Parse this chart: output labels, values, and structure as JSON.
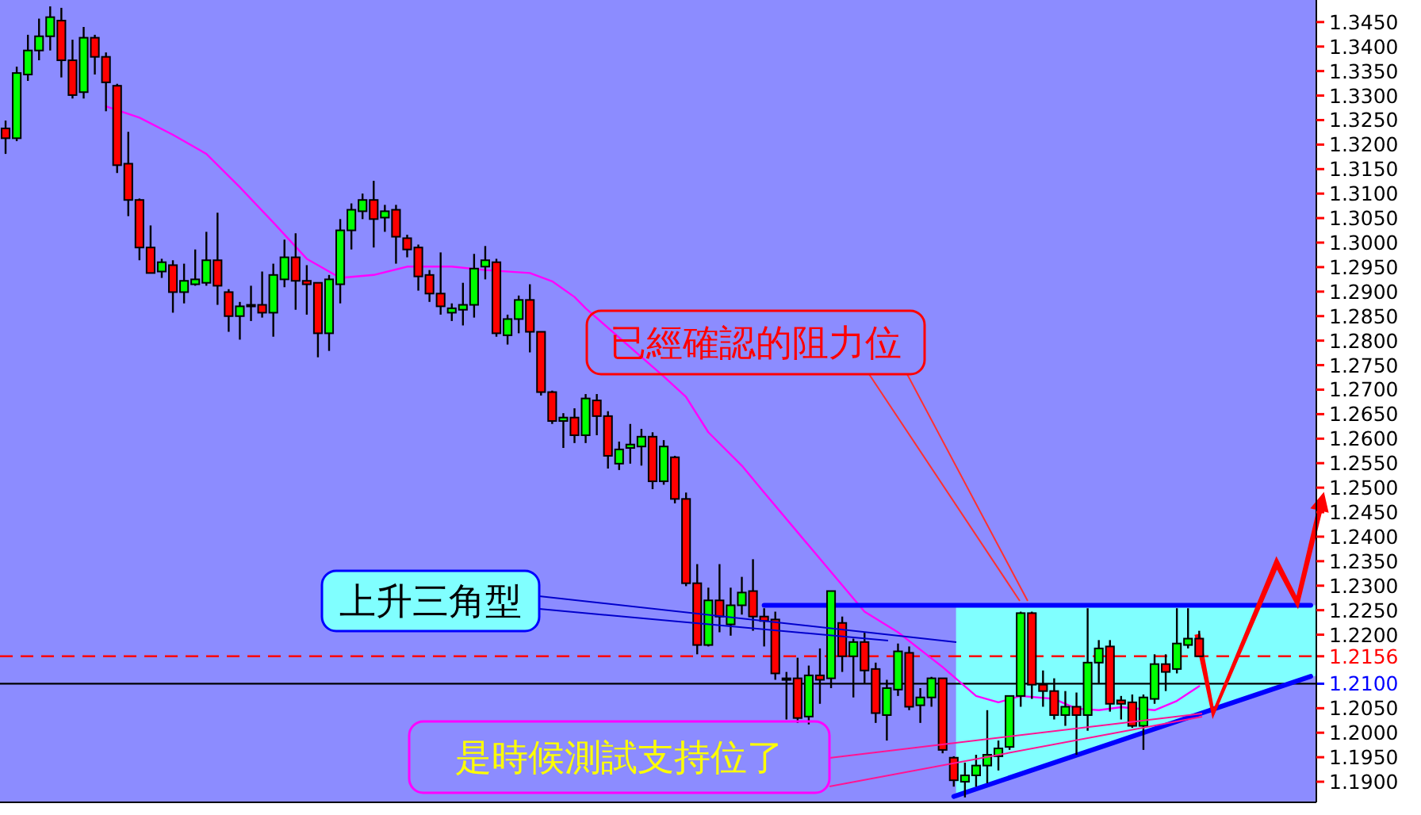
{
  "chart_data": {
    "type": "candlestick",
    "categories": [
      null,
      null,
      null,
      null,
      null,
      null,
      null,
      null,
      null,
      null,
      null,
      null,
      null,
      null,
      null,
      null,
      null,
      null,
      null,
      null,
      null,
      null,
      null,
      null,
      null,
      null,
      null,
      null,
      null,
      null,
      null,
      null,
      null,
      null,
      null,
      null,
      null,
      null,
      null,
      null,
      null,
      null,
      null,
      null,
      null,
      null,
      null,
      null,
      null,
      null,
      null,
      null,
      null,
      null,
      null,
      null,
      null,
      null,
      null,
      null,
      null,
      null,
      null,
      null,
      null,
      null,
      null,
      null,
      null,
      null,
      null,
      null,
      null,
      null,
      null,
      null,
      null,
      null,
      null,
      null,
      null,
      null,
      null,
      null,
      null,
      null,
      null,
      null,
      null,
      null,
      null,
      null,
      null,
      null,
      null,
      null,
      null,
      null,
      null,
      null,
      null,
      null,
      null,
      null,
      null,
      null,
      null,
      null,
      null,
      null,
      null,
      null,
      null,
      null,
      null,
      null,
      null,
      null
    ],
    "ohlc": [
      [
        1.3233,
        1.3249,
        1.3181,
        1.3213
      ],
      [
        1.3213,
        1.3359,
        1.3207,
        1.3346
      ],
      [
        1.3343,
        1.3424,
        1.333,
        1.3392
      ],
      [
        1.3392,
        1.3457,
        1.3372,
        1.3421
      ],
      [
        1.3421,
        1.3482,
        1.3392,
        1.346
      ],
      [
        1.3453,
        1.3479,
        1.3337,
        1.3372
      ],
      [
        1.3372,
        1.3414,
        1.3294,
        1.3301
      ],
      [
        1.3307,
        1.344,
        1.3294,
        1.3418
      ],
      [
        1.3418,
        1.3424,
        1.3343,
        1.3379
      ],
      [
        1.3379,
        1.3388,
        1.3268,
        1.3327
      ],
      [
        1.332,
        1.3324,
        1.3142,
        1.3158
      ],
      [
        1.3161,
        1.3226,
        1.3054,
        1.3087
      ],
      [
        1.3087,
        1.309,
        1.2964,
        1.299
      ],
      [
        1.299,
        1.3035,
        1.2938,
        1.2938
      ],
      [
        1.2941,
        1.2967,
        1.2928,
        1.296
      ],
      [
        1.2954,
        1.2964,
        1.2857,
        1.2899
      ],
      [
        1.2899,
        1.2957,
        1.2876,
        1.2922
      ],
      [
        1.2915,
        1.2986,
        1.2912,
        1.2925
      ],
      [
        1.2918,
        1.3022,
        1.2912,
        1.2964
      ],
      [
        1.2964,
        1.3061,
        1.2873,
        1.2912
      ],
      [
        1.2899,
        1.2905,
        1.2818,
        1.285
      ],
      [
        1.285,
        1.2879,
        1.2802,
        1.287
      ],
      [
        1.287,
        1.2912,
        1.284,
        1.2873
      ],
      [
        1.2873,
        1.2941,
        1.2847,
        1.2857
      ],
      [
        1.2857,
        1.2957,
        1.2808,
        1.2934
      ],
      [
        1.2925,
        1.3006,
        1.2909,
        1.297
      ],
      [
        1.297,
        1.3019,
        1.2863,
        1.2922
      ],
      [
        1.2922,
        1.2954,
        1.2853,
        1.2915
      ],
      [
        1.2918,
        1.2918,
        1.2766,
        1.2815
      ],
      [
        1.2815,
        1.2934,
        1.2779,
        1.2925
      ],
      [
        1.2915,
        1.3048,
        1.2876,
        1.3025
      ],
      [
        1.3025,
        1.308,
        1.2986,
        1.3067
      ],
      [
        1.3064,
        1.31,
        1.3048,
        1.3087
      ],
      [
        1.3087,
        1.3126,
        1.299,
        1.3048
      ],
      [
        1.3051,
        1.3077,
        1.3022,
        1.3064
      ],
      [
        1.3067,
        1.3077,
        1.2957,
        1.3012
      ],
      [
        1.3009,
        1.3016,
        1.297,
        1.2986
      ],
      [
        1.299,
        1.2996,
        1.2902,
        1.2931
      ],
      [
        1.2934,
        1.2944,
        1.2879,
        1.2896
      ],
      [
        1.2896,
        1.298,
        1.2853,
        1.287
      ],
      [
        1.2857,
        1.2876,
        1.284,
        1.2866
      ],
      [
        1.2863,
        1.2918,
        1.2831,
        1.2873
      ],
      [
        1.2873,
        1.2977,
        1.2847,
        1.2947
      ],
      [
        1.2951,
        1.2993,
        1.2925,
        1.2964
      ],
      [
        1.296,
        1.2967,
        1.2808,
        1.2815
      ],
      [
        1.2811,
        1.2853,
        1.2792,
        1.2844
      ],
      [
        1.2844,
        1.2892,
        1.2815,
        1.2883
      ],
      [
        1.2883,
        1.2915,
        1.2776,
        1.2818
      ],
      [
        1.2818,
        1.2818,
        1.2688,
        1.2695
      ],
      [
        1.2695,
        1.2698,
        1.263,
        1.2636
      ],
      [
        1.2636,
        1.2652,
        1.2581,
        1.2643
      ],
      [
        1.2643,
        1.2662,
        1.2591,
        1.2607
      ],
      [
        1.2607,
        1.2691,
        1.2591,
        1.2682
      ],
      [
        1.2678,
        1.2691,
        1.2607,
        1.2646
      ],
      [
        1.2646,
        1.2656,
        1.2539,
        1.2565
      ],
      [
        1.2549,
        1.2594,
        1.2536,
        1.2578
      ],
      [
        1.2581,
        1.263,
        1.2549,
        1.2588
      ],
      [
        1.2584,
        1.262,
        1.2545,
        1.2604
      ],
      [
        1.2604,
        1.2613,
        1.2497,
        1.2513
      ],
      [
        1.2513,
        1.2597,
        1.2506,
        1.2584
      ],
      [
        1.2562,
        1.2565,
        1.2468,
        1.2477
      ],
      [
        1.2477,
        1.249,
        1.2299,
        1.2305
      ],
      [
        1.2305,
        1.2344,
        1.216,
        1.2179
      ],
      [
        1.2179,
        1.2296,
        1.2176,
        1.227
      ],
      [
        1.227,
        1.2344,
        1.2205,
        1.2237
      ],
      [
        1.2221,
        1.2296,
        1.2198,
        1.226
      ],
      [
        1.226,
        1.2318,
        1.2241,
        1.2286
      ],
      [
        1.2289,
        1.2354,
        1.2208,
        1.2237
      ],
      [
        1.2237,
        1.2254,
        1.2176,
        1.2228
      ],
      [
        1.2231,
        1.2247,
        1.2108,
        1.2121
      ],
      [
        1.2111,
        1.2124,
        1.2027,
        1.2108
      ],
      [
        1.2111,
        1.2153,
        1.202,
        1.203
      ],
      [
        1.2033,
        1.2137,
        1.2017,
        1.2117
      ],
      [
        1.2117,
        1.2172,
        1.2059,
        1.2108
      ],
      [
        1.2111,
        1.2289,
        1.2091,
        1.2289
      ],
      [
        1.2224,
        1.2237,
        1.2124,
        1.2156
      ],
      [
        1.2156,
        1.2192,
        1.2072,
        1.2185
      ],
      [
        1.2185,
        1.2205,
        1.2101,
        1.2127
      ],
      [
        1.213,
        1.2143,
        1.202,
        1.204
      ],
      [
        1.2036,
        1.2108,
        1.1984,
        1.2091
      ],
      [
        1.2088,
        1.2182,
        1.2075,
        1.2166
      ],
      [
        1.2163,
        1.2176,
        1.2046,
        1.2053
      ],
      [
        1.2056,
        1.2091,
        1.202,
        1.2072
      ],
      [
        1.2072,
        1.2114,
        1.2053,
        1.2111
      ],
      [
        1.2111,
        1.2111,
        1.1958,
        1.1965
      ],
      [
        1.1949,
        1.1952,
        1.189,
        1.1903
      ],
      [
        1.19,
        1.1939,
        1.1868,
        1.1913
      ],
      [
        1.1913,
        1.1955,
        1.189,
        1.1933
      ],
      [
        1.1933,
        1.2046,
        1.1897,
        1.1955
      ],
      [
        1.1952,
        1.1984,
        1.1923,
        1.1968
      ],
      [
        1.1971,
        1.2075,
        1.1965,
        1.2075
      ],
      [
        1.2075,
        1.2247,
        1.2053,
        1.2244
      ],
      [
        1.2244,
        1.2247,
        1.2069,
        1.2098
      ],
      [
        1.2098,
        1.2127,
        1.2053,
        1.2085
      ],
      [
        1.2085,
        1.2111,
        1.2027,
        1.2036
      ],
      [
        1.2036,
        1.2085,
        1.2014,
        1.2053
      ],
      [
        1.2053,
        1.2082,
        1.1955,
        1.2036
      ],
      [
        1.2036,
        1.2254,
        1.2004,
        1.2143
      ],
      [
        1.2143,
        1.2189,
        1.2101,
        1.2172
      ],
      [
        1.2176,
        1.2189,
        1.2043,
        1.2059
      ],
      [
        1.2066,
        1.2075,
        1.2027,
        1.2059
      ],
      [
        1.2062,
        1.2078,
        1.201,
        1.2014
      ],
      [
        1.2014,
        1.2078,
        1.1965,
        1.2072
      ],
      [
        1.2069,
        1.216,
        1.2059,
        1.214
      ],
      [
        1.214,
        1.216,
        1.2085,
        1.2124
      ],
      [
        1.213,
        1.2254,
        1.2121,
        1.2182
      ],
      [
        1.2179,
        1.2254,
        1.2172,
        1.2192
      ],
      [
        1.2192,
        1.2208,
        1.2156,
        1.2156
      ],
      null,
      null,
      null,
      null,
      null,
      null,
      null,
      null,
      null,
      null
    ],
    "colors": [
      "#ff0000",
      "#00ff00",
      "#00ff00",
      "#00ff00",
      "#00ff00",
      "#ff0000",
      "#ff0000",
      "#00ff00",
      "#ff0000",
      "#ff0000",
      "#ff0000",
      "#ff0000",
      "#ff0000",
      "#ff0000",
      "#00ff00",
      "#ff0000",
      "#00ff00",
      "#00ff00",
      "#00ff00",
      "#ff0000",
      "#ff0000",
      "#00ff00",
      "#00ff00",
      "#ff0000",
      "#00ff00",
      "#00ff00",
      "#ff0000",
      "#ff0000",
      "#ff0000",
      "#00ff00",
      "#00ff00",
      "#00ff00",
      "#00ff00",
      "#ff0000",
      "#00ff00",
      "#ff0000",
      "#ff0000",
      "#ff0000",
      "#ff0000",
      "#ff0000",
      "#00ff00",
      "#00ff00",
      "#00ff00",
      "#00ff00",
      "#ff0000",
      "#00ff00",
      "#00ff00",
      "#ff0000",
      "#ff0000",
      "#ff0000",
      "#00ff00",
      "#ff0000",
      "#00ff00",
      "#ff0000",
      "#ff0000",
      "#00ff00",
      "#00ff00",
      "#00ff00",
      "#ff0000",
      "#00ff00",
      "#ff0000",
      "#ff0000",
      "#ff0000",
      "#00ff00",
      "#ff0000",
      "#00ff00",
      "#00ff00",
      "#ff0000",
      "#ff0000",
      "#ff0000",
      "#ff0000",
      "#ff0000",
      "#00ff00",
      "#ff0000",
      "#00ff00",
      "#ff0000",
      "#00ff00",
      "#ff0000",
      "#ff0000",
      "#00ff00",
      "#00ff00",
      "#ff0000",
      "#00ff00",
      "#00ff00",
      "#ff0000",
      "#ff0000",
      "#00ff00",
      "#00ff00",
      "#00ff00",
      "#00ff00",
      "#00ff00",
      "#00ff00",
      "#ff0000",
      "#ff0000",
      "#ff0000",
      "#00ff00",
      "#ff0000",
      "#00ff00",
      "#00ff00",
      "#ff0000",
      "#ff0000",
      "#ff0000",
      "#00ff00",
      "#00ff00",
      "#ff0000",
      "#00ff00",
      "#00ff00",
      "#ff0000",
      null,
      null,
      null,
      null,
      null,
      null,
      null,
      null,
      null,
      null
    ],
    "series": [
      {
        "type": "line",
        "color": "#ff00ff",
        "values": [
          null,
          null,
          null,
          null,
          null,
          null,
          null,
          null,
          null,
          1.3278,
          null,
          null,
          1.3255,
          null,
          null,
          1.322,
          null,
          null,
          1.3181,
          null,
          null,
          1.3113,
          null,
          null,
          1.3041,
          null,
          null,
          1.2967,
          null,
          null,
          1.2928,
          null,
          null,
          1.2934,
          null,
          null,
          1.2951,
          null,
          null,
          null,
          1.2951,
          null,
          null,
          1.2944,
          null,
          null,
          null,
          1.2938,
          null,
          1.2921,
          null,
          1.2889,
          1.2866,
          null,
          null,
          null,
          null,
          null,
          null,
          1.2727,
          null,
          1.2685,
          null,
          1.2613,
          null,
          null,
          1.2545,
          null,
          1.249,
          null,
          null,
          1.2409,
          null,
          null,
          1.2328,
          null,
          null,
          1.2247,
          null,
          null,
          1.2205,
          null,
          null,
          null,
          1.2134,
          null,
          null,
          1.2075,
          null,
          1.2062,
          null,
          1.2075,
          null,
          null,
          1.2069,
          null,
          1.2049,
          null,
          1.2046,
          null,
          1.2052,
          null,
          null,
          1.2046,
          null,
          1.2065,
          null,
          1.2095,
          null,
          null,
          null,
          null,
          null,
          null,
          null,
          null,
          null,
          null
        ]
      },
      {
        "type": "line",
        "color": "#0000ff",
        "values": [
          null,
          null,
          null,
          null,
          null,
          null,
          null,
          null,
          null,
          null,
          null,
          null,
          null,
          null,
          null,
          null,
          null,
          null,
          null,
          null,
          null,
          null,
          null,
          null,
          null,
          null,
          null,
          null,
          null,
          null,
          null,
          null,
          null,
          null,
          null,
          null,
          null,
          null,
          null,
          null,
          null,
          null,
          null,
          null,
          null,
          null,
          null,
          null,
          null,
          null,
          null,
          null,
          null,
          null,
          null,
          null,
          null,
          null,
          null,
          null,
          null,
          null,
          null,
          null,
          null,
          null,
          null,
          null,
          1.226,
          null,
          null,
          null,
          null,
          null,
          null,
          null,
          null,
          null,
          null,
          null,
          null,
          null,
          null,
          null,
          null,
          null,
          null,
          null,
          null,
          null,
          null,
          null,
          null,
          null,
          null,
          null,
          null,
          null,
          null,
          null,
          null,
          null,
          null,
          null,
          null,
          null,
          null,
          null,
          null,
          null,
          null,
          null,
          null,
          null,
          null,
          null,
          null,
          1.226
        ]
      },
      {
        "type": "line",
        "color": "#0000ff",
        "values": [
          null,
          null,
          null,
          null,
          null,
          null,
          null,
          null,
          null,
          null,
          null,
          null,
          null,
          null,
          null,
          null,
          null,
          null,
          null,
          null,
          null,
          null,
          null,
          null,
          null,
          null,
          null,
          null,
          null,
          null,
          null,
          null,
          null,
          null,
          null,
          null,
          null,
          null,
          null,
          null,
          null,
          null,
          null,
          null,
          null,
          null,
          null,
          null,
          null,
          null,
          null,
          null,
          null,
          null,
          null,
          null,
          null,
          null,
          null,
          null,
          null,
          null,
          null,
          null,
          null,
          null,
          null,
          null,
          null,
          null,
          null,
          null,
          null,
          null,
          null,
          null,
          null,
          null,
          null,
          null,
          null,
          null,
          null,
          null,
          null,
          1.187,
          null,
          null,
          null,
          null,
          null,
          null,
          null,
          null,
          null,
          null,
          null,
          null,
          null,
          null,
          null,
          null,
          null,
          null,
          null,
          null,
          null,
          null,
          null,
          null,
          null,
          null,
          null,
          null,
          null,
          null,
          null,
          1.2115
        ]
      }
    ],
    "ylim": [
      1.1858,
      1.3495
    ],
    "yticks": [
      {
        "value": 1.19,
        "label": "1.1900"
      },
      {
        "value": 1.195,
        "label": "1.1950"
      },
      {
        "value": 1.2,
        "label": "1.2000"
      },
      {
        "value": 1.205,
        "label": "1.2050"
      },
      {
        "value": 1.22,
        "label": "1.2200"
      },
      {
        "value": 1.225,
        "label": "1.2250"
      },
      {
        "value": 1.23,
        "label": "1.2300"
      },
      {
        "value": 1.235,
        "label": "1.2350"
      },
      {
        "value": 1.24,
        "label": "1.2400"
      },
      {
        "value": 1.245,
        "label": "1.2450"
      },
      {
        "value": 1.25,
        "label": "1.2500"
      },
      {
        "value": 1.255,
        "label": "1.2550"
      },
      {
        "value": 1.26,
        "label": "1.2600"
      },
      {
        "value": 1.265,
        "label": "1.2650"
      },
      {
        "value": 1.27,
        "label": "1.2700"
      },
      {
        "value": 1.275,
        "label": "1.2750"
      },
      {
        "value": 1.28,
        "label": "1.2800"
      },
      {
        "value": 1.285,
        "label": "1.2850"
      },
      {
        "value": 1.29,
        "label": "1.2900"
      },
      {
        "value": 1.295,
        "label": "1.2950"
      },
      {
        "value": 1.3,
        "label": "1.3000"
      },
      {
        "value": 1.305,
        "label": "1.3050"
      },
      {
        "value": 1.31,
        "label": "1.3100"
      },
      {
        "value": 1.315,
        "label": "1.3150"
      },
      {
        "value": 1.32,
        "label": "1.3200"
      },
      {
        "value": 1.325,
        "label": "1.3250"
      },
      {
        "value": 1.33,
        "label": "1.3300"
      },
      {
        "value": 1.335,
        "label": "1.3350"
      },
      {
        "value": 1.34,
        "label": "1.3400"
      },
      {
        "value": 1.345,
        "label": "1.3450"
      }
    ],
    "ref_lines": [
      {
        "axis": "y",
        "value": 1.2156,
        "label": "1.2156",
        "color": "#ff0000",
        "line_style": "dashed"
      },
      {
        "axis": "y",
        "value": 1.21,
        "label": "1.2100",
        "color": "#000000"
      }
    ],
    "annotations": [
      "已經確認的阻力位",
      "上升三角型",
      "是時候測試支持位了"
    ],
    "tick_labels": "y"
  }
}
